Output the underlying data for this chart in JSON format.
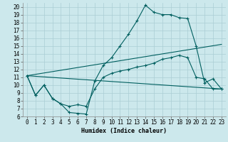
{
  "xlabel": "Humidex (Indice chaleur)",
  "bg_color": "#cce8ec",
  "grid_color": "#aacdd4",
  "line_color": "#005f5f",
  "xlim": [
    -0.5,
    23.5
  ],
  "ylim": [
    6,
    20.5
  ],
  "xticks": [
    0,
    1,
    2,
    3,
    4,
    5,
    6,
    7,
    8,
    9,
    10,
    11,
    12,
    13,
    14,
    15,
    16,
    17,
    18,
    19,
    20,
    21,
    22,
    23
  ],
  "yticks": [
    6,
    7,
    8,
    9,
    10,
    11,
    12,
    13,
    14,
    15,
    16,
    17,
    18,
    19,
    20
  ],
  "curve1_x": [
    0,
    1,
    2,
    3,
    4,
    5,
    6,
    7,
    8,
    9,
    10,
    11,
    12,
    13,
    14,
    15,
    16,
    17,
    18,
    19,
    20,
    21,
    22,
    23
  ],
  "curve1_y": [
    11.2,
    8.7,
    10.0,
    8.3,
    7.6,
    6.5,
    6.4,
    6.3,
    10.5,
    12.5,
    13.5,
    15.0,
    16.5,
    18.2,
    20.2,
    19.3,
    19.0,
    19.0,
    18.6,
    18.5,
    15.0,
    10.3,
    10.8,
    9.5
  ],
  "curve2_x": [
    0,
    1,
    2,
    3,
    4,
    5,
    6,
    7,
    8,
    9,
    10,
    11,
    12,
    13,
    14,
    15,
    16,
    17,
    18,
    19,
    20,
    21,
    22,
    23
  ],
  "curve2_y": [
    11.2,
    8.7,
    10.0,
    8.3,
    7.6,
    7.3,
    7.5,
    7.3,
    9.5,
    11.0,
    11.5,
    11.8,
    12.0,
    12.3,
    12.5,
    12.8,
    13.3,
    13.5,
    13.8,
    13.5,
    11.0,
    10.8,
    9.5,
    9.5
  ],
  "curve3_x": [
    0,
    23
  ],
  "curve3_y": [
    11.2,
    9.5
  ],
  "curve4_x": [
    0,
    23
  ],
  "curve4_y": [
    11.2,
    15.2
  ]
}
